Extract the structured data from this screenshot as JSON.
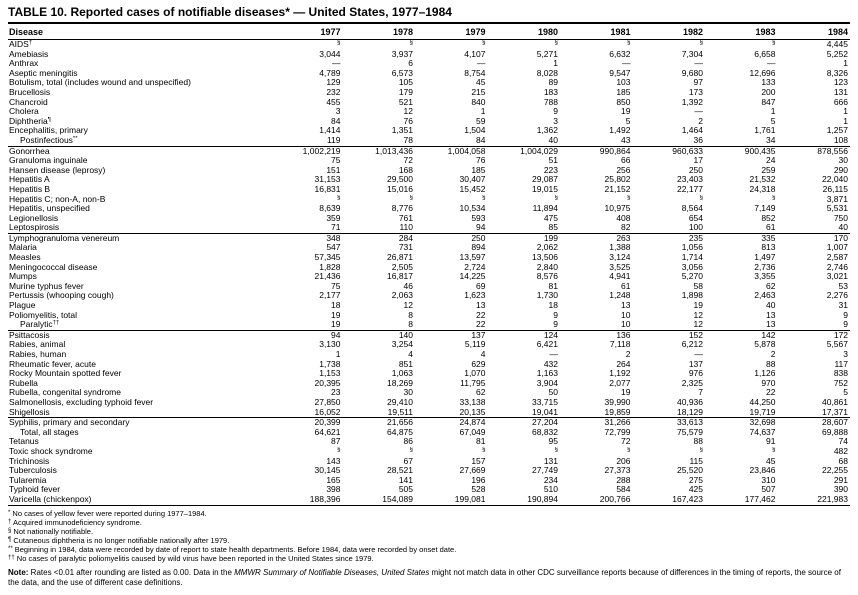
{
  "title": "TABLE 10. Reported cases of notifiable diseases* — United States, 1977–1984",
  "table": {
    "columns": [
      "Disease",
      "1977",
      "1978",
      "1979",
      "1980",
      "1981",
      "1982",
      "1983",
      "1984"
    ],
    "not_notifiable_symbol": "§",
    "groups": [
      {
        "rows": [
          {
            "name": "AIDS",
            "sup": "†",
            "values": [
              "§",
              "§",
              "§",
              "§",
              "§",
              "§",
              "§",
              "4,445"
            ]
          },
          {
            "name": "Amebiasis",
            "values": [
              "3,044",
              "3,937",
              "4,107",
              "5,271",
              "6,632",
              "7,304",
              "6,658",
              "5,252"
            ]
          },
          {
            "name": "Anthrax",
            "values": [
              "—",
              "6",
              "—",
              "1",
              "—",
              "—",
              "—",
              "1"
            ]
          },
          {
            "name": "Aseptic meningitis",
            "values": [
              "4,789",
              "6,573",
              "8,754",
              "8,028",
              "9,547",
              "9,680",
              "12,696",
              "8,326"
            ]
          },
          {
            "name": "Botulism, total (includes wound and unspecified)",
            "values": [
              "129",
              "105",
              "45",
              "89",
              "103",
              "97",
              "133",
              "123"
            ]
          },
          {
            "name": "Brucellosis",
            "values": [
              "232",
              "179",
              "215",
              "183",
              "185",
              "173",
              "200",
              "131"
            ]
          },
          {
            "name": "Chancroid",
            "values": [
              "455",
              "521",
              "840",
              "788",
              "850",
              "1,392",
              "847",
              "666"
            ]
          },
          {
            "name": "Cholera",
            "values": [
              "3",
              "12",
              "1",
              "9",
              "19",
              "—",
              "1",
              "1"
            ]
          },
          {
            "name": "Diphtheria",
            "sup": "¶",
            "values": [
              "84",
              "76",
              "59",
              "3",
              "5",
              "2",
              "5",
              "1"
            ]
          },
          {
            "name": "Encephalitis, primary",
            "values": [
              "1,414",
              "1,351",
              "1,504",
              "1,362",
              "1,492",
              "1,464",
              "1,761",
              "1,257"
            ]
          },
          {
            "name": "Postinfectious",
            "sup": "**",
            "indent": true,
            "values": [
              "119",
              "78",
              "84",
              "40",
              "43",
              "36",
              "34",
              "108"
            ]
          }
        ]
      },
      {
        "rows": [
          {
            "name": "Gonorrhea",
            "values": [
              "1,002,219",
              "1,013,436",
              "1,004,058",
              "1,004,029",
              "990,864",
              "960,633",
              "900,435",
              "878,556"
            ]
          },
          {
            "name": "Granuloma inguinale",
            "values": [
              "75",
              "72",
              "76",
              "51",
              "66",
              "17",
              "24",
              "30"
            ]
          },
          {
            "name": "Hansen disease (leprosy)",
            "values": [
              "151",
              "168",
              "185",
              "223",
              "256",
              "250",
              "259",
              "290"
            ]
          },
          {
            "name": "Hepatitis A",
            "values": [
              "31,153",
              "29,500",
              "30,407",
              "29,087",
              "25,802",
              "23,403",
              "21,532",
              "22,040"
            ]
          },
          {
            "name": "Hepatitis B",
            "values": [
              "16,831",
              "15,016",
              "15,452",
              "19,015",
              "21,152",
              "22,177",
              "24,318",
              "26,115"
            ]
          },
          {
            "name": "Hepatitis C; non-A, non-B",
            "values": [
              "§",
              "§",
              "§",
              "§",
              "§",
              "§",
              "§",
              "3,871"
            ]
          },
          {
            "name": "Hepatitis, unspecified",
            "values": [
              "8,639",
              "8,776",
              "10,534",
              "11,894",
              "10,975",
              "8,564",
              "7,149",
              "5,531"
            ]
          },
          {
            "name": "Legionellosis",
            "values": [
              "359",
              "761",
              "593",
              "475",
              "408",
              "654",
              "852",
              "750"
            ]
          },
          {
            "name": "Leptospirosis",
            "values": [
              "71",
              "110",
              "94",
              "85",
              "82",
              "100",
              "61",
              "40"
            ]
          }
        ]
      },
      {
        "rows": [
          {
            "name": "Lymphogranuloma venereum",
            "values": [
              "348",
              "284",
              "250",
              "199",
              "263",
              "235",
              "335",
              "170"
            ]
          },
          {
            "name": "Malaria",
            "values": [
              "547",
              "731",
              "894",
              "2,062",
              "1,388",
              "1,056",
              "813",
              "1,007"
            ]
          },
          {
            "name": "Measles",
            "values": [
              "57,345",
              "26,871",
              "13,597",
              "13,506",
              "3,124",
              "1,714",
              "1,497",
              "2,587"
            ]
          },
          {
            "name": "Meningococcal disease",
            "values": [
              "1,828",
              "2,505",
              "2,724",
              "2,840",
              "3,525",
              "3,056",
              "2,736",
              "2,746"
            ]
          },
          {
            "name": "Mumps",
            "values": [
              "21,436",
              "16,817",
              "14,225",
              "8,576",
              "4,941",
              "5,270",
              "3,355",
              "3,021"
            ]
          },
          {
            "name": "Murine typhus fever",
            "values": [
              "75",
              "46",
              "69",
              "81",
              "61",
              "58",
              "62",
              "53"
            ]
          },
          {
            "name": "Pertussis (whooping cough)",
            "values": [
              "2,177",
              "2,063",
              "1,623",
              "1,730",
              "1,248",
              "1,898",
              "2,463",
              "2,276"
            ]
          },
          {
            "name": "Plague",
            "values": [
              "18",
              "12",
              "13",
              "18",
              "13",
              "19",
              "40",
              "31"
            ]
          },
          {
            "name": "Poliomyelitis, total",
            "values": [
              "19",
              "8",
              "22",
              "9",
              "10",
              "12",
              "13",
              "9"
            ]
          },
          {
            "name": "Paralytic",
            "sup": "††",
            "indent": true,
            "values": [
              "19",
              "8",
              "22",
              "9",
              "10",
              "12",
              "13",
              "9"
            ]
          }
        ]
      },
      {
        "rows": [
          {
            "name": "Psittacosis",
            "values": [
              "94",
              "140",
              "137",
              "124",
              "136",
              "152",
              "142",
              "172"
            ]
          },
          {
            "name": "Rabies, animal",
            "values": [
              "3,130",
              "3,254",
              "5,119",
              "6,421",
              "7,118",
              "6,212",
              "5,878",
              "5,567"
            ]
          },
          {
            "name": "Rabies, human",
            "values": [
              "1",
              "4",
              "4",
              "—",
              "2",
              "—",
              "2",
              "3"
            ]
          },
          {
            "name": "Rheumatic fever, acute",
            "values": [
              "1,738",
              "851",
              "629",
              "432",
              "264",
              "137",
              "88",
              "117"
            ]
          },
          {
            "name": "Rocky Mountain spotted fever",
            "values": [
              "1,153",
              "1,063",
              "1,070",
              "1,163",
              "1,192",
              "976",
              "1,126",
              "838"
            ]
          },
          {
            "name": "Rubella",
            "values": [
              "20,395",
              "18,269",
              "11,795",
              "3,904",
              "2,077",
              "2,325",
              "970",
              "752"
            ]
          },
          {
            "name": "Rubella, congenital syndrome",
            "values": [
              "23",
              "30",
              "62",
              "50",
              "19",
              "7",
              "22",
              "5"
            ]
          },
          {
            "name": "Salmonellosis, excluding typhoid fever",
            "values": [
              "27,850",
              "29,410",
              "33,138",
              "33,715",
              "39,990",
              "40,936",
              "44,250",
              "40,861"
            ]
          },
          {
            "name": "Shigellosis",
            "values": [
              "16,052",
              "19,511",
              "20,135",
              "19,041",
              "19,859",
              "18,129",
              "19,719",
              "17,371"
            ]
          }
        ]
      },
      {
        "rows": [
          {
            "name": "Syphilis, primary and secondary",
            "values": [
              "20,399",
              "21,656",
              "24,874",
              "27,204",
              "31,266",
              "33,613",
              "32,698",
              "28,607"
            ]
          },
          {
            "name": "Total, all stages",
            "indent": true,
            "values": [
              "64,621",
              "64,875",
              "67,049",
              "68,832",
              "72,799",
              "75,579",
              "74,637",
              "69,888"
            ]
          },
          {
            "name": "Tetanus",
            "values": [
              "87",
              "86",
              "81",
              "95",
              "72",
              "88",
              "91",
              "74"
            ]
          },
          {
            "name": "Toxic shock syndrome",
            "values": [
              "§",
              "§",
              "§",
              "§",
              "§",
              "§",
              "§",
              "482"
            ]
          },
          {
            "name": "Trichinosis",
            "values": [
              "143",
              "67",
              "157",
              "131",
              "206",
              "115",
              "45",
              "68"
            ]
          },
          {
            "name": "Tuberculosis",
            "values": [
              "30,145",
              "28,521",
              "27,669",
              "27,749",
              "27,373",
              "25,520",
              "23,846",
              "22,255"
            ]
          },
          {
            "name": "Tularemia",
            "values": [
              "165",
              "141",
              "196",
              "234",
              "288",
              "275",
              "310",
              "291"
            ]
          },
          {
            "name": "Typhoid fever",
            "values": [
              "398",
              "505",
              "528",
              "510",
              "584",
              "425",
              "507",
              "390"
            ]
          },
          {
            "name": "Varicella (chickenpox)",
            "values": [
              "188,396",
              "154,089",
              "199,081",
              "190,894",
              "200,766",
              "167,423",
              "177,462",
              "221,983"
            ]
          }
        ]
      }
    ]
  },
  "footnotes": [
    {
      "symbol": "*",
      "text": "No cases of yellow fever were reported during 1977–1984."
    },
    {
      "symbol": "†",
      "text": "Acquired immunodeficiency syndrome."
    },
    {
      "symbol": "§",
      "text": "Not nationally notifiable."
    },
    {
      "symbol": "¶",
      "text": "Cutaneous diphtheria is no longer notifiable nationally after 1979."
    },
    {
      "symbol": "**",
      "text": "Beginning in 1984, data were recorded by date of report to state health departments. Before 1984, data were recorded by onset date."
    },
    {
      "symbol": "††",
      "text": "No cases of paralytic poliomyelitis caused by wild virus have been reported in the United States since 1979."
    }
  ],
  "note": {
    "label": "Note:",
    "text_before_italic": " Rates <0.01 after rounding are listed as 0.00. Data in the ",
    "italic_text": "MMWR Summary of Notifiable Diseases, United States",
    "text_after_italic": " might not match data in other CDC surveillance reports because of differences in the timing of reports, the source of the data, and the use of different case definitions."
  }
}
